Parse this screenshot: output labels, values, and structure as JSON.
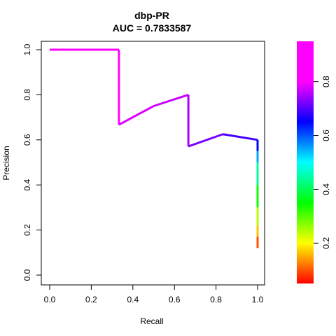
{
  "chart_data": {
    "type": "line",
    "title": "dbp-PR",
    "subtitle": "AUC = 0.7833587",
    "xlabel": "Recall",
    "ylabel": "Precision",
    "xlim": [
      0,
      1
    ],
    "ylim": [
      0,
      1
    ],
    "x_ticks": [
      "0.0",
      "0.2",
      "0.4",
      "0.6",
      "0.8",
      "1.0"
    ],
    "y_ticks": [
      "0.0",
      "0.2",
      "0.4",
      "0.6",
      "0.8",
      "1.0"
    ],
    "grid": false,
    "colorbar": {
      "range": [
        0.05,
        0.95
      ],
      "ticks": [
        "0.2",
        "0.4",
        "0.6",
        "0.8"
      ],
      "colormap": "rainbow (red to magenta)"
    },
    "series": [
      {
        "points": [
          {
            "recall": 0.0,
            "precision": 1.0,
            "threshold": 0.93
          },
          {
            "recall": 0.333,
            "precision": 1.0,
            "threshold": 0.93
          },
          {
            "recall": 0.333,
            "precision": 0.667,
            "threshold": 0.9
          },
          {
            "recall": 0.5,
            "precision": 0.75,
            "threshold": 0.88
          },
          {
            "recall": 0.667,
            "precision": 0.8,
            "threshold": 0.87
          },
          {
            "recall": 0.667,
            "precision": 0.571,
            "threshold": 0.84
          },
          {
            "recall": 0.833,
            "precision": 0.625,
            "threshold": 0.8
          },
          {
            "recall": 1.0,
            "precision": 0.6,
            "threshold": 0.77
          },
          {
            "recall": 1.0,
            "precision": 0.55,
            "threshold": 0.7
          },
          {
            "recall": 1.0,
            "precision": 0.5,
            "threshold": 0.55
          },
          {
            "recall": 1.0,
            "precision": 0.4,
            "threshold": 0.45
          },
          {
            "recall": 1.0,
            "precision": 0.3,
            "threshold": 0.32
          },
          {
            "recall": 1.0,
            "precision": 0.22,
            "threshold": 0.22
          },
          {
            "recall": 1.0,
            "precision": 0.17,
            "threshold": 0.14
          },
          {
            "recall": 1.0,
            "precision": 0.12,
            "threshold": 0.07
          }
        ]
      }
    ]
  }
}
